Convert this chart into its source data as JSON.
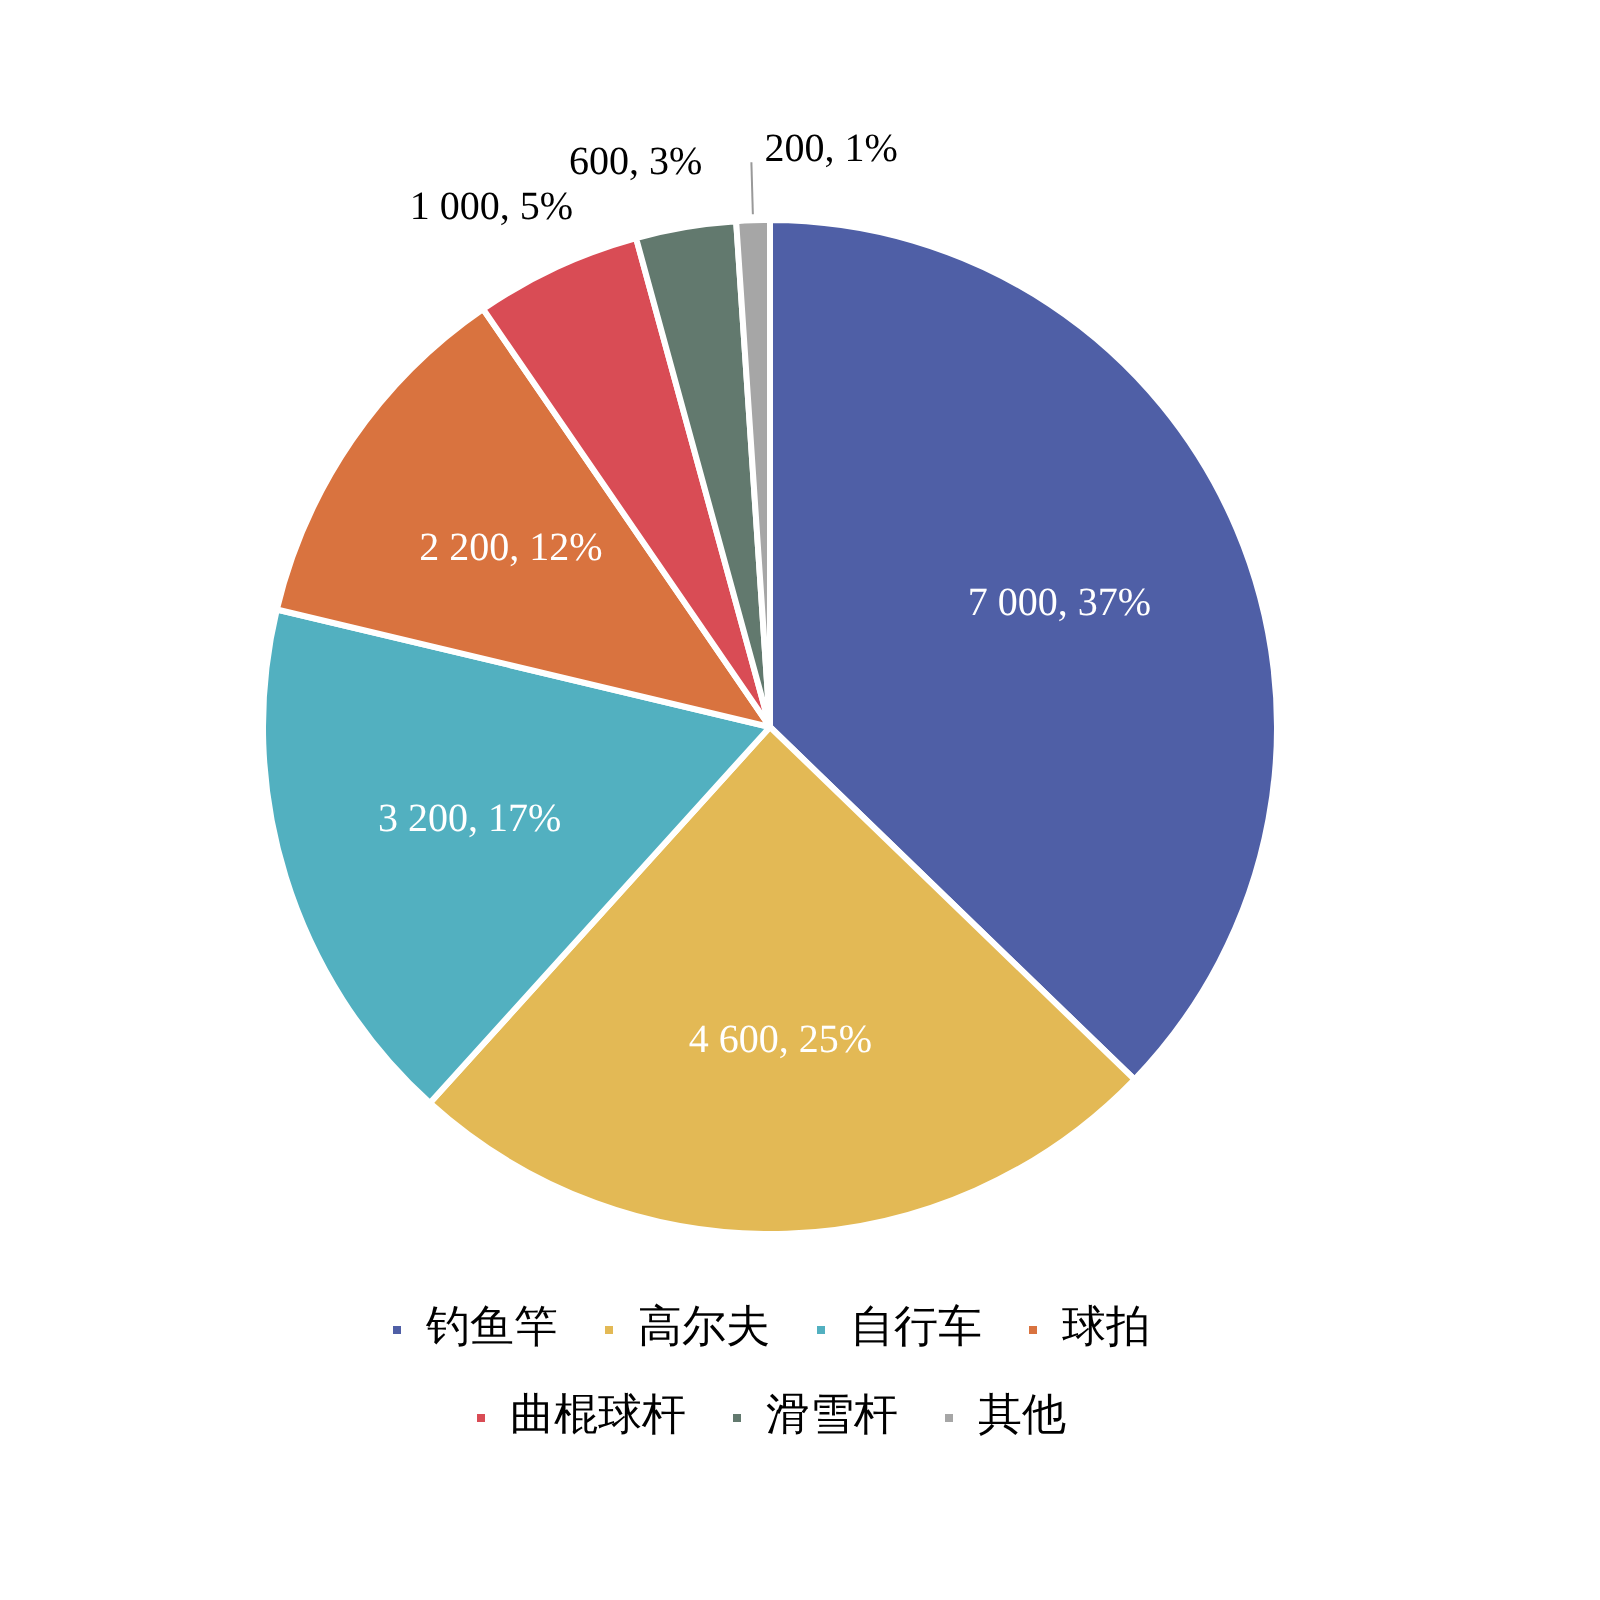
{
  "chart_data": {
    "type": "pie",
    "categories": [
      "钓鱼竿",
      "高尔夫",
      "自行车",
      "球拍",
      "曲棍球杆",
      "滑雪杆",
      "其他"
    ],
    "values": [
      7000,
      4600,
      3200,
      2200,
      1000,
      600,
      200
    ],
    "colors": [
      "#4f5fa6",
      "#e3b955",
      "#52b0c0",
      "#d9733f",
      "#d94c55",
      "#62796e",
      "#a6a6a6"
    ],
    "value_labels": [
      "7 000, 37%",
      "4 600, 25%",
      "3 200, 17%",
      "2 200, 12%",
      "1 000, 5%",
      "600, 3%",
      "200, 1%"
    ],
    "legend": "bottom"
  }
}
